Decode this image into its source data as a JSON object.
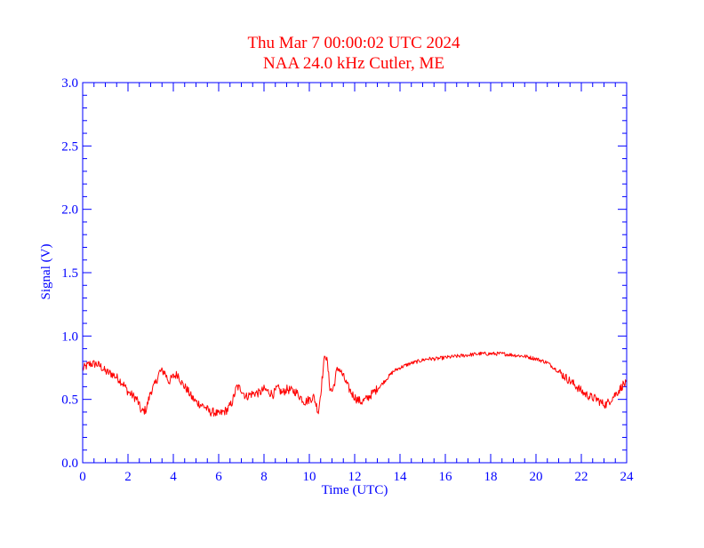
{
  "chart_data": {
    "type": "line",
    "title": "Thu Mar 7 00:00:02 UTC 2024",
    "subtitle": "NAA 24.0 kHz Cutler, ME",
    "xlabel": "Time (UTC)",
    "ylabel": "Signal (V)",
    "xlim": [
      0,
      24
    ],
    "ylim": [
      0,
      3.0
    ],
    "x_ticks": [
      0,
      2,
      4,
      6,
      8,
      10,
      12,
      14,
      16,
      18,
      20,
      22,
      24
    ],
    "x_tick_labels": [
      "0",
      "2",
      "4",
      "6",
      "8",
      "10",
      "12",
      "14",
      "16",
      "18",
      "20",
      "22",
      "24"
    ],
    "y_ticks": [
      0,
      0.5,
      1.0,
      1.5,
      2.0,
      2.5,
      3.0
    ],
    "y_tick_labels": [
      "0.0",
      "0.5",
      "1.0",
      "1.5",
      "2.0",
      "2.5",
      "3.0"
    ],
    "grid": false,
    "series": [
      {
        "name": "NAA 24.0 kHz",
        "color": "#ff0000",
        "x": [
          0,
          0.3,
          0.6,
          0.8,
          1.0,
          1.3,
          1.6,
          1.8,
          2.0,
          2.2,
          2.4,
          2.6,
          2.8,
          3.0,
          3.2,
          3.4,
          3.6,
          3.8,
          4.0,
          4.2,
          4.4,
          4.6,
          4.8,
          5.0,
          5.2,
          5.4,
          5.6,
          5.8,
          6.0,
          6.2,
          6.4,
          6.6,
          6.8,
          7.0,
          7.2,
          7.4,
          7.6,
          7.8,
          8.0,
          8.2,
          8.4,
          8.6,
          8.8,
          9.0,
          9.2,
          9.4,
          9.6,
          9.8,
          10.0,
          10.2,
          10.4,
          10.5,
          10.6,
          10.7,
          10.8,
          10.9,
          11.0,
          11.1,
          11.2,
          11.3,
          11.5,
          11.7,
          11.9,
          12.1,
          12.3,
          12.5,
          12.8,
          13.1,
          13.4,
          13.7,
          14.0,
          14.4,
          14.8,
          15.2,
          15.6,
          16.0,
          16.5,
          17.0,
          17.5,
          18.0,
          18.5,
          19.0,
          19.5,
          20.0,
          20.5,
          21.0,
          21.4,
          21.8,
          22.1,
          22.4,
          22.7,
          22.9,
          23.1,
          23.3,
          23.5,
          23.7,
          23.85,
          24.0
        ],
        "values": [
          0.74,
          0.78,
          0.78,
          0.76,
          0.72,
          0.7,
          0.66,
          0.62,
          0.56,
          0.53,
          0.5,
          0.4,
          0.42,
          0.56,
          0.62,
          0.72,
          0.72,
          0.64,
          0.68,
          0.7,
          0.62,
          0.58,
          0.52,
          0.48,
          0.46,
          0.44,
          0.4,
          0.4,
          0.38,
          0.4,
          0.42,
          0.48,
          0.6,
          0.58,
          0.52,
          0.54,
          0.55,
          0.55,
          0.58,
          0.56,
          0.54,
          0.59,
          0.55,
          0.58,
          0.57,
          0.56,
          0.52,
          0.48,
          0.5,
          0.52,
          0.4,
          0.55,
          0.72,
          0.87,
          0.78,
          0.6,
          0.56,
          0.62,
          0.72,
          0.75,
          0.68,
          0.6,
          0.54,
          0.5,
          0.48,
          0.5,
          0.55,
          0.6,
          0.66,
          0.72,
          0.75,
          0.78,
          0.8,
          0.82,
          0.82,
          0.83,
          0.84,
          0.85,
          0.86,
          0.86,
          0.86,
          0.85,
          0.84,
          0.82,
          0.79,
          0.72,
          0.66,
          0.6,
          0.55,
          0.52,
          0.5,
          0.47,
          0.46,
          0.5,
          0.54,
          0.58,
          0.62,
          0.62
        ]
      }
    ]
  },
  "colors": {
    "axis": "#0000ff",
    "title": "#ff0000",
    "line": "#ff0000",
    "background": "#ffffff"
  }
}
